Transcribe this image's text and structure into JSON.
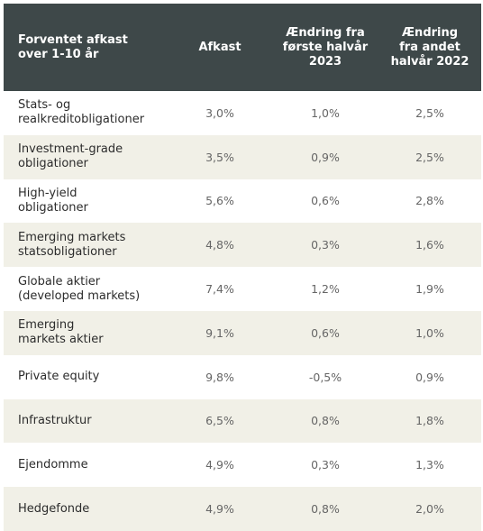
{
  "table": {
    "headers": [
      [
        "Forventet afkast",
        "over 1-10 år"
      ],
      [
        "Afkast"
      ],
      [
        "Ændring fra",
        "første halvår",
        "2023"
      ],
      [
        "Ændring",
        "fra andet",
        "halvår 2022"
      ]
    ],
    "rows": [
      {
        "name": [
          "Stats- og",
          "realkreditobligationer"
        ],
        "afkast": "3,0%",
        "change_h1_2023": "1,0%",
        "change_h2_2022": "2,5%"
      },
      {
        "name": [
          "Investment-grade",
          "obligationer"
        ],
        "afkast": "3,5%",
        "change_h1_2023": "0,9%",
        "change_h2_2022": "2,5%"
      },
      {
        "name": [
          "High-yield",
          "obligationer"
        ],
        "afkast": "5,6%",
        "change_h1_2023": "0,6%",
        "change_h2_2022": "2,8%"
      },
      {
        "name": [
          "Emerging markets",
          "statsobligationer"
        ],
        "afkast": "4,8%",
        "change_h1_2023": "0,3%",
        "change_h2_2022": "1,6%"
      },
      {
        "name": [
          "Globale aktier",
          "(developed markets)"
        ],
        "afkast": "7,4%",
        "change_h1_2023": "1,2%",
        "change_h2_2022": "1,9%"
      },
      {
        "name": [
          "Emerging",
          "markets aktier"
        ],
        "afkast": "9,1%",
        "change_h1_2023": "0,6%",
        "change_h2_2022": "1,0%"
      },
      {
        "name": [
          "Private equity"
        ],
        "afkast": "9,8%",
        "change_h1_2023": "-0,5%",
        "change_h2_2022": "0,9%"
      },
      {
        "name": [
          "Infrastruktur"
        ],
        "afkast": "6,5%",
        "change_h1_2023": "0,8%",
        "change_h2_2022": "1,8%"
      },
      {
        "name": [
          "Ejendomme"
        ],
        "afkast": "4,9%",
        "change_h1_2023": "0,3%",
        "change_h2_2022": "1,3%"
      },
      {
        "name": [
          "Hedgefonde"
        ],
        "afkast": "4,9%",
        "change_h1_2023": "0,8%",
        "change_h2_2022": "2,0%"
      }
    ]
  },
  "colors": {
    "header_bg": "#3e4849",
    "header_text": "#ffffff",
    "stripe_bg": "#f1f0e7",
    "row_bg": "#ffffff"
  }
}
